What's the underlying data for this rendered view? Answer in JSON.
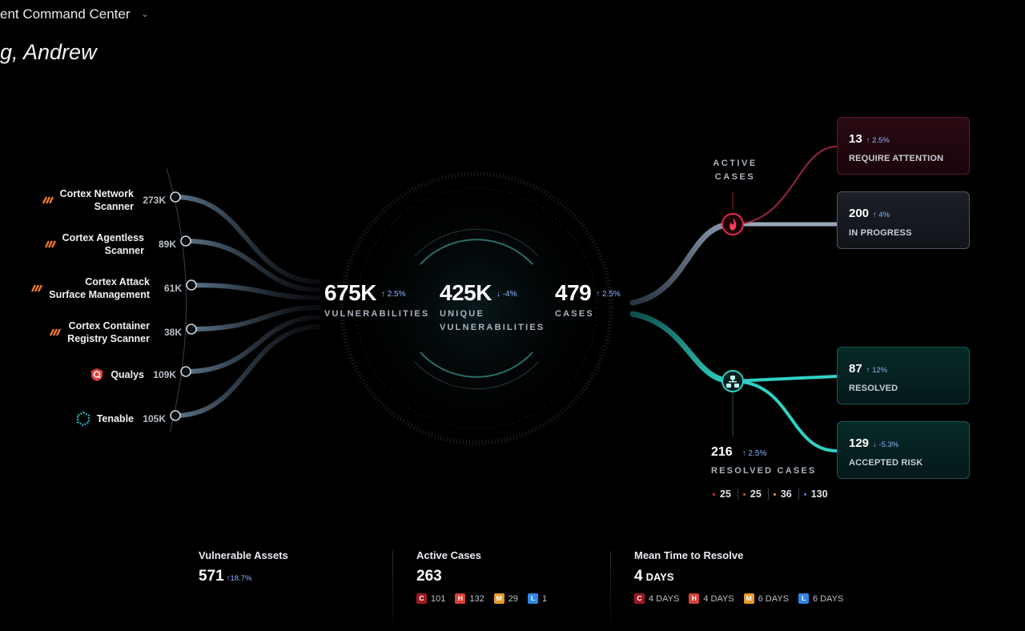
{
  "header": {
    "title": "ent Command Center",
    "greeting": "g, Andrew"
  },
  "sources": [
    {
      "name": [
        "Cortex Network",
        "Scanner"
      ],
      "count": "273K",
      "icon": "cortex-icon"
    },
    {
      "name": [
        "Cortex Agentless",
        "Scanner"
      ],
      "count": "89K",
      "icon": "cortex-icon"
    },
    {
      "name": [
        "Cortex Attack",
        "Surface Management"
      ],
      "count": "61K",
      "icon": "cortex-icon"
    },
    {
      "name": [
        "Cortex Container",
        "Registry Scanner"
      ],
      "count": "38K",
      "icon": "cortex-icon"
    },
    {
      "name": [
        "Qualys"
      ],
      "count": "109K",
      "icon": "qualys-icon"
    },
    {
      "name": [
        "Tenable"
      ],
      "count": "105K",
      "icon": "tenable-icon"
    }
  ],
  "metrics": {
    "vulnerabilities": {
      "value": "675K",
      "delta": "2.5%",
      "label": "VULNERABILITIES"
    },
    "unique": {
      "value": "425K",
      "delta": "-4%",
      "label1": "UNIQUE",
      "label2": "VULNERABILITIES"
    },
    "cases": {
      "value": "479",
      "delta": "2.5%",
      "label": "CASES"
    }
  },
  "active_cases": {
    "label1": "ACTIVE",
    "label2": "CASES"
  },
  "cards": {
    "attention": {
      "value": "13",
      "delta": "2.5%",
      "label": "REQUIRE ATTENTION"
    },
    "progress": {
      "value": "200",
      "delta": "4%",
      "label": "IN PROGRESS"
    },
    "resolved": {
      "value": "87",
      "delta": "12%",
      "label": "RESOLVED"
    },
    "accepted": {
      "value": "129",
      "delta": "-5.3%",
      "label": "ACCEPTED RISK"
    }
  },
  "resolved_cases": {
    "value": "216",
    "delta": "2.5%",
    "label": "RESOLVED CASES",
    "severities": [
      {
        "value": "25",
        "color": "#d9312b"
      },
      {
        "value": "25",
        "color": "#e0533c"
      },
      {
        "value": "36",
        "color": "#f0a030"
      },
      {
        "value": "130",
        "color": "#3a8ee8"
      }
    ]
  },
  "kpis": {
    "assets": {
      "title": "Vulnerable Assets",
      "value": "571",
      "delta": "18.7%"
    },
    "active": {
      "title": "Active Cases",
      "value": "263",
      "chips": [
        {
          "letter": "C",
          "value": "101",
          "color": "#9e1c22"
        },
        {
          "letter": "H",
          "value": "132",
          "color": "#d9403a"
        },
        {
          "letter": "M",
          "value": "29",
          "color": "#e89a2c"
        },
        {
          "letter": "L",
          "value": "1",
          "color": "#2f86e6"
        }
      ]
    },
    "mttr": {
      "title": "Mean Time to Resolve",
      "value": "4",
      "unit": "DAYS",
      "chips": [
        {
          "letter": "C",
          "value": "4 DAYS",
          "color": "#9e1c22"
        },
        {
          "letter": "H",
          "value": "4 DAYS",
          "color": "#d9403a"
        },
        {
          "letter": "M",
          "value": "6 DAYS",
          "color": "#e89a2c"
        },
        {
          "letter": "L",
          "value": "6 DAYS",
          "color": "#2f86e6"
        }
      ]
    }
  },
  "colors": {
    "accent": "#8eb6ff",
    "teal": "#2fd1c4",
    "red": "#e0294a"
  }
}
